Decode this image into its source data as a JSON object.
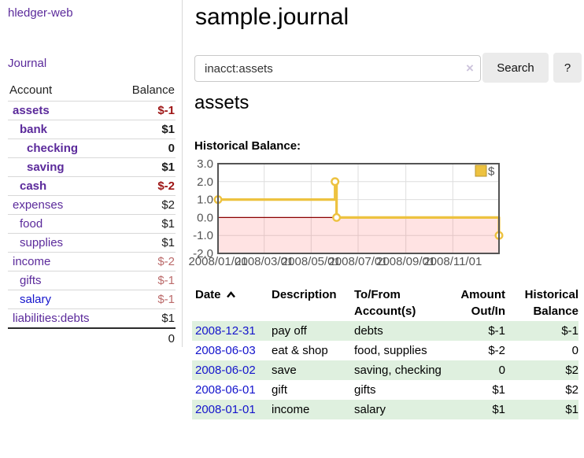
{
  "sidebar": {
    "brand": "hledger-web",
    "journal_link": "Journal",
    "accounts_table": {
      "account_header": "Account",
      "balance_header": "Balance",
      "rows": [
        {
          "account": "assets",
          "balance": "$-1"
        },
        {
          "account": "bank",
          "balance": "$1"
        },
        {
          "account": "checking",
          "balance": "0"
        },
        {
          "account": "saving",
          "balance": "$1"
        },
        {
          "account": "cash",
          "balance": "$-2"
        },
        {
          "account": "expenses",
          "balance": "$2"
        },
        {
          "account": "food",
          "balance": "$1"
        },
        {
          "account": "supplies",
          "balance": "$1"
        },
        {
          "account": "income",
          "balance": "$-2"
        },
        {
          "account": "gifts",
          "balance": "$-1"
        },
        {
          "account": "salary",
          "balance": "$-1"
        },
        {
          "account": "liabilities:debts",
          "balance": "$1"
        }
      ],
      "total": "0"
    }
  },
  "header": {
    "title": "sample.journal"
  },
  "search": {
    "value": "inacct:assets",
    "clear_icon": "×",
    "search_button": "Search",
    "help_button": "?"
  },
  "account_view": {
    "heading": "assets",
    "chart_title": "Historical Balance:"
  },
  "chart_data": {
    "type": "line",
    "style": "step-after",
    "series": [
      {
        "name": "$",
        "color": "#edc240",
        "points": [
          [
            "2008-01-01",
            1.0
          ],
          [
            "2008-06-01",
            2.0
          ],
          [
            "2008-06-03",
            0.0
          ],
          [
            "2008-12-31",
            -1.0
          ]
        ]
      }
    ],
    "xlim": [
      "2008-01-01",
      "2008-12-31"
    ],
    "ylim": [
      -2.0,
      3.0
    ],
    "yticks": [
      3.0,
      2.0,
      1.0,
      0.0,
      -1.0,
      -2.0
    ],
    "xticks": [
      {
        "date": "2008-01-01",
        "label": "2008/01/01"
      },
      {
        "date": "2008-03-01",
        "label": "2008/03/01"
      },
      {
        "date": "2008-05-01",
        "label": "2008/05/01"
      },
      {
        "date": "2008-07-01",
        "label": "2008/07/01"
      },
      {
        "date": "2008-09-01",
        "label": "2008/09/01"
      },
      {
        "date": "2008-11-01",
        "label": "2008/11/01"
      }
    ],
    "legend": {
      "label": "$",
      "position": "top-right"
    },
    "grid": true,
    "zero_line_color": "#8b0000",
    "negative_region_fill": "rgba(255,80,80,0.16)",
    "axis_label_color": "#545454",
    "border_color": "#545454"
  },
  "register": {
    "headers": {
      "date": "Date",
      "description": "Description",
      "accounts": "To/From Account(s)",
      "amount": "Amount Out/In",
      "balance": "Historical Balance"
    },
    "rows": [
      {
        "date": "2008-12-31",
        "description": "pay off",
        "accounts": "debts",
        "amount": "$-1",
        "balance": "$-1"
      },
      {
        "date": "2008-06-03",
        "description": "eat & shop",
        "accounts": "food, supplies",
        "amount": "$-2",
        "balance": "0"
      },
      {
        "date": "2008-06-02",
        "description": "save",
        "accounts": "saving, checking",
        "amount": "0",
        "balance": "$2"
      },
      {
        "date": "2008-06-01",
        "description": "gift",
        "accounts": "gifts",
        "amount": "$1",
        "balance": "$2"
      },
      {
        "date": "2008-01-01",
        "description": "income",
        "accounts": "salary",
        "amount": "$1",
        "balance": "$1"
      }
    ]
  },
  "colors": {
    "link_purple": "#5b2a9b",
    "link_blue": "#1414cc",
    "negative_strong": "#9d1414",
    "negative_muted": "#bb6a6a",
    "row_green": "#dff0df",
    "chart_gold": "#edc240"
  }
}
